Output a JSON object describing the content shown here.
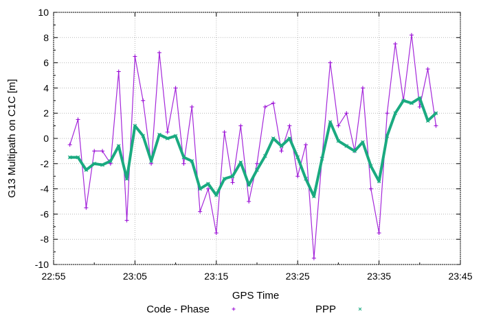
{
  "chart_data": {
    "type": "scatter",
    "xlabel": "GPS Time",
    "ylabel": "G13 Multipath on C1C [m]",
    "xlim": [
      "22:55",
      "23:45"
    ],
    "ylim": [
      -10,
      10
    ],
    "x_ticks": [
      "22:55",
      "23:05",
      "23:15",
      "23:25",
      "23:35",
      "23:45"
    ],
    "y_ticks": [
      -10,
      -8,
      -6,
      -4,
      -2,
      0,
      2,
      4,
      6,
      8,
      10
    ],
    "grid": true,
    "legend_position": "bottom",
    "series": [
      {
        "name": "Code - Phase",
        "marker": "+",
        "color": "#9400d3",
        "x": [
          "22:57",
          "22:58",
          "22:59",
          "23:00",
          "23:01",
          "23:02",
          "23:03",
          "23:04",
          "23:05",
          "23:06",
          "23:07",
          "23:08",
          "23:09",
          "23:10",
          "23:11",
          "23:12",
          "23:13",
          "23:14",
          "23:15",
          "23:16",
          "23:17",
          "23:18",
          "23:19",
          "23:20",
          "23:21",
          "23:22",
          "23:23",
          "23:24",
          "23:25",
          "23:26",
          "23:27",
          "23:28",
          "23:29",
          "23:30",
          "23:31",
          "23:32",
          "23:33",
          "23:34",
          "23:35",
          "23:36",
          "23:37",
          "23:38",
          "23:39",
          "23:40",
          "23:41",
          "23:42"
        ],
        "y": [
          -0.5,
          1.5,
          -5.5,
          -1,
          -1,
          -2,
          5.3,
          -6.5,
          6.5,
          3,
          -2,
          6.8,
          0.5,
          4,
          -2,
          2.5,
          -5.8,
          -4,
          -7.5,
          0.5,
          -3.5,
          1,
          -5,
          -2,
          2.5,
          2.8,
          -1,
          1,
          -3,
          -0.5,
          -9.5,
          -1.5,
          6,
          1,
          2,
          -1,
          4,
          -4,
          -7.5,
          2,
          7.5,
          3,
          8.2,
          2.5,
          5.5,
          1
        ]
      },
      {
        "name": "PPP",
        "marker": "x",
        "color": "#1aaa80",
        "x": [
          "22:57",
          "22:58",
          "22:59",
          "23:00",
          "23:01",
          "23:02",
          "23:03",
          "23:04",
          "23:05",
          "23:06",
          "23:07",
          "23:08",
          "23:09",
          "23:10",
          "23:11",
          "23:12",
          "23:13",
          "23:14",
          "23:15",
          "23:16",
          "23:17",
          "23:18",
          "23:19",
          "23:20",
          "23:21",
          "23:22",
          "23:23",
          "23:24",
          "23:25",
          "23:26",
          "23:27",
          "23:28",
          "23:29",
          "23:30",
          "23:31",
          "23:32",
          "23:33",
          "23:34",
          "23:35",
          "23:36",
          "23:37",
          "23:38",
          "23:39",
          "23:40",
          "23:41",
          "23:42"
        ],
        "y": [
          -1.5,
          -1.5,
          -2.5,
          -2,
          -2.1,
          -1.8,
          -0.6,
          -3.2,
          1,
          0.2,
          -1.8,
          0.3,
          0,
          0.2,
          -1.5,
          -1.8,
          -4,
          -3.6,
          -4.5,
          -3.2,
          -3,
          -1.9,
          -3.7,
          -2.5,
          -1.4,
          0,
          -0.6,
          0,
          -1.5,
          -3.2,
          -4.6,
          -1.6,
          1.3,
          -0.2,
          -0.6,
          -1,
          -0.3,
          -2.2,
          -3.4,
          0.2,
          2,
          3,
          2.8,
          3.2,
          1.4,
          2
        ]
      }
    ]
  }
}
